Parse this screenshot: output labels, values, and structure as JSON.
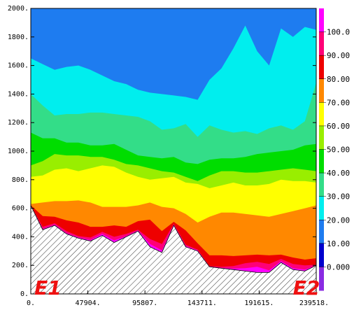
{
  "chart_data": {
    "type": "area",
    "title": "",
    "xlabel": "",
    "ylabel": "",
    "xlim": [
      0,
      239518
    ],
    "ylim": [
      0,
      2000
    ],
    "x_tick_labels": [
      "0.",
      "47904.",
      "95807.",
      "143711.",
      "191615.",
      "239518."
    ],
    "x_tick_values": [
      0,
      47904,
      95807,
      143711,
      191615,
      239518
    ],
    "y_tick_labels": [
      "0.",
      "200.",
      "400.",
      "600.",
      "800.",
      "1000.",
      "1200.",
      "1400.",
      "1600.",
      "1800.",
      "2000."
    ],
    "y_tick_values": [
      0,
      200,
      400,
      600,
      800,
      1000,
      1200,
      1400,
      1600,
      1800,
      2000
    ],
    "colorbar": {
      "labels": [
        "0.000",
        "10.00",
        "20.00",
        "30.00",
        "40.00",
        "50.00",
        "60.00",
        "70.00",
        "80.00",
        "90.00",
        "100.0"
      ],
      "levels": [
        0,
        10,
        20,
        30,
        40,
        50,
        60,
        70,
        80,
        90,
        100
      ],
      "colors": [
        "#8a2be2",
        "#0000cd",
        "#1e7cf0",
        "#00eeee",
        "#33dd88",
        "#00dd00",
        "#99ee00",
        "#ffff00",
        "#ff8800",
        "#ee0000",
        "#ff0077",
        "#ff00ff"
      ]
    },
    "x": [
      0,
      10000,
      20000,
      30000,
      40000,
      50000,
      60000,
      70000,
      80000,
      90000,
      100000,
      110000,
      120000,
      130000,
      140000,
      150000,
      160000,
      170000,
      180000,
      190000,
      200000,
      210000,
      220000,
      230000,
      239518
    ],
    "terrain": [
      620,
      450,
      480,
      420,
      390,
      370,
      410,
      360,
      400,
      440,
      330,
      290,
      480,
      330,
      300,
      190,
      180,
      170,
      160,
      150,
      150,
      220,
      170,
      160,
      200
    ],
    "series": [
      {
        "level": 100,
        "values": [
          620,
          450,
          480,
          420,
          390,
          370,
          410,
          360,
          400,
          440,
          330,
          290,
          480,
          330,
          300,
          190,
          180,
          170,
          160,
          150,
          150,
          220,
          170,
          160,
          200
        ]
      },
      {
        "level": 90,
        "values": [
          620,
          455,
          485,
          425,
          395,
          378,
          420,
          375,
          405,
          445,
          350,
          305,
          485,
          335,
          305,
          192,
          182,
          178,
          180,
          190,
          165,
          230,
          180,
          170,
          200
        ]
      },
      {
        "level": 80,
        "values": [
          620,
          470,
          495,
          440,
          405,
          395,
          435,
          400,
          420,
          450,
          385,
          350,
          490,
          345,
          310,
          195,
          190,
          195,
          215,
          225,
          210,
          245,
          210,
          200,
          205
        ]
      },
      {
        "level": 70,
        "values": [
          620,
          545,
          540,
          515,
          500,
          470,
          470,
          480,
          470,
          510,
          520,
          440,
          505,
          445,
          355,
          270,
          270,
          265,
          270,
          275,
          270,
          275,
          255,
          240,
          250
        ]
      },
      {
        "level": 60,
        "values": [
          630,
          640,
          650,
          650,
          655,
          640,
          610,
          610,
          610,
          620,
          640,
          610,
          600,
          560,
          500,
          540,
          570,
          570,
          560,
          550,
          540,
          560,
          580,
          600,
          620
        ]
      },
      {
        "level": 50,
        "values": [
          820,
          830,
          870,
          880,
          860,
          880,
          900,
          890,
          850,
          820,
          800,
          810,
          820,
          780,
          770,
          740,
          760,
          780,
          760,
          760,
          770,
          800,
          790,
          790,
          780
        ]
      },
      {
        "level": 40,
        "values": [
          900,
          930,
          980,
          970,
          970,
          960,
          960,
          940,
          910,
          900,
          880,
          860,
          850,
          820,
          790,
          830,
          860,
          860,
          850,
          850,
          860,
          870,
          880,
          870,
          860
        ]
      },
      {
        "level": 30,
        "values": [
          1130,
          1090,
          1090,
          1060,
          1060,
          1040,
          1040,
          1050,
          1010,
          970,
          960,
          950,
          960,
          920,
          910,
          940,
          950,
          950,
          960,
          980,
          990,
          1000,
          1010,
          1040,
          1050
        ]
      },
      {
        "level": 20,
        "values": [
          1400,
          1320,
          1250,
          1260,
          1260,
          1270,
          1270,
          1260,
          1250,
          1240,
          1210,
          1150,
          1160,
          1190,
          1100,
          1180,
          1150,
          1130,
          1140,
          1120,
          1160,
          1180,
          1150,
          1210,
          1480
        ]
      },
      {
        "level": 10,
        "values": [
          1650,
          1610,
          1570,
          1590,
          1600,
          1570,
          1530,
          1490,
          1470,
          1430,
          1410,
          1400,
          1390,
          1380,
          1360,
          1500,
          1580,
          1720,
          1880,
          1700,
          1600,
          1860,
          1800,
          1870,
          1850
        ]
      },
      {
        "level": 0,
        "values": [
          2000,
          2000,
          2000,
          2000,
          2000,
          2000,
          2000,
          2000,
          2000,
          2000,
          2000,
          2000,
          2000,
          2000,
          2000,
          2000,
          2000,
          2000,
          2000,
          2000,
          2000,
          2000,
          2000,
          2000,
          2000
        ]
      }
    ],
    "annotations": [
      {
        "text": "E1",
        "x": 3000,
        "y": 45
      },
      {
        "text": "E2",
        "x": 220000,
        "y": 45
      }
    ],
    "grid": false,
    "legend": "colorbar-right"
  }
}
